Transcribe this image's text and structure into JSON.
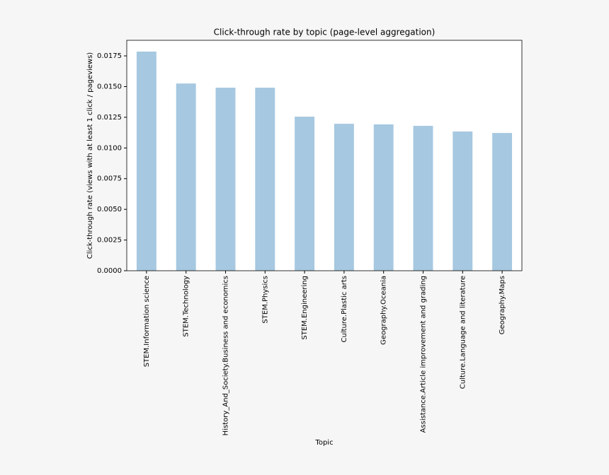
{
  "chart_data": {
    "type": "bar",
    "title": "Click-through rate by topic (page-level aggregation)",
    "x_label": "Topic",
    "y_label": "Click-through rate (views with at least 1 click / pageviews)",
    "categories": [
      "STEM.Information science",
      "STEM.Technology",
      "History_And_Society.Business and economics",
      "STEM.Physics",
      "STEM.Engineering",
      "Culture.Plastic arts",
      "Geography.Oceania",
      "Assistance.Article improvement and grading",
      "Culture.Language and literature",
      "Geography.Maps"
    ],
    "values": [
      0.01785,
      0.01525,
      0.01491,
      0.01491,
      0.01255,
      0.01197,
      0.01192,
      0.0118,
      0.01134,
      0.01122
    ],
    "color": "#a6c8e0",
    "ylim": [
      0,
      0.01877
    ],
    "yticks": [
      {
        "value": 0,
        "label": "0.0000"
      },
      {
        "value": 0.0025,
        "label": "0.0025"
      },
      {
        "value": 0.005,
        "label": "0.0050"
      },
      {
        "value": 0.0075,
        "label": "0.0075"
      },
      {
        "value": 0.01,
        "label": "0.0100"
      },
      {
        "value": 0.0125,
        "label": "0.0125"
      },
      {
        "value": 0.015,
        "label": "0.0150"
      },
      {
        "value": 0.0175,
        "label": "0.0175"
      }
    ],
    "grid": false
  }
}
